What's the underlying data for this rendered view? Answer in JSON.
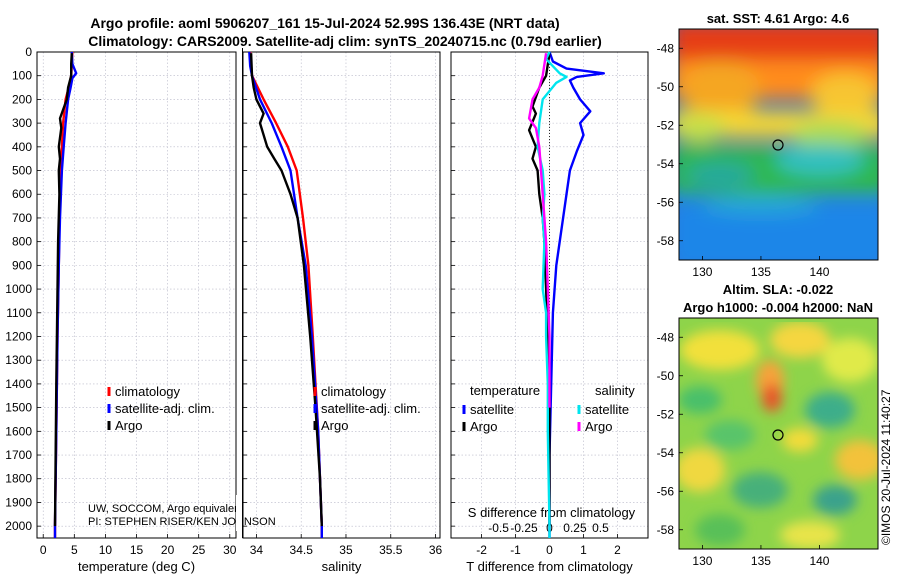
{
  "header": {
    "title_line1": "Argo profile: aoml 5906207_161 15-Jul-2024 52.99S 136.43E (NRT data)",
    "title_line2": "Climatology: CARS2009. Satellite-adj clim: synTS_20240715.nc (0.79d earlier)"
  },
  "credits": {
    "line1": "UW, SOCCOM, Argo equivalent",
    "line2": "PI: STEPHEN RISER/KEN JOHNSON",
    "watermark": "©IMOS 20-Jul-2024 11:40:27"
  },
  "colors": {
    "climatology": "#ff0000",
    "satellite": "#0000ff",
    "argo": "#000000",
    "sal_satellite": "#00e5ee",
    "sal_argo": "#ff00ff"
  },
  "chart_data": [
    {
      "id": "temperature",
      "type": "line",
      "xlabel": "temperature (deg C)",
      "ylabel": "depth",
      "xlim": [
        -1,
        31
      ],
      "ylim": [
        0,
        2050
      ],
      "y_reversed": true,
      "grid": true,
      "xticks": [
        0,
        5,
        10,
        15,
        20,
        25,
        30
      ],
      "yticks": [
        0,
        100,
        200,
        300,
        400,
        500,
        600,
        700,
        800,
        900,
        1000,
        1100,
        1200,
        1300,
        1400,
        1500,
        1600,
        1700,
        1800,
        1900,
        2000
      ],
      "legend": [
        "climatology",
        "satellite-adj. clim.",
        "Argo"
      ],
      "legend_position": "bottom-right",
      "series": [
        {
          "name": "climatology",
          "color": "red",
          "points": [
            [
              4.7,
              0
            ],
            [
              4.6,
              50
            ],
            [
              4.5,
              100
            ],
            [
              4.1,
              150
            ],
            [
              3.6,
              200
            ],
            [
              3.2,
              300
            ],
            [
              3.0,
              400
            ],
            [
              2.8,
              500
            ],
            [
              2.6,
              700
            ],
            [
              2.5,
              900
            ],
            [
              2.3,
              1200
            ],
            [
              2.1,
              1600
            ],
            [
              1.9,
              2000
            ],
            [
              1.9,
              2050
            ]
          ]
        },
        {
          "name": "satellite-adj. clim.",
          "color": "blue",
          "points": [
            [
              4.6,
              0
            ],
            [
              4.7,
              50
            ],
            [
              5.3,
              90
            ],
            [
              4.7,
              110
            ],
            [
              4.4,
              150
            ],
            [
              4.0,
              200
            ],
            [
              3.6,
              300
            ],
            [
              3.3,
              400
            ],
            [
              3.0,
              500
            ],
            [
              2.7,
              700
            ],
            [
              2.5,
              900
            ],
            [
              2.3,
              1200
            ],
            [
              2.1,
              1600
            ],
            [
              1.9,
              2000
            ],
            [
              1.9,
              2050
            ]
          ]
        },
        {
          "name": "Argo",
          "color": "black",
          "points": [
            [
              4.6,
              5
            ],
            [
              4.5,
              50
            ],
            [
              4.5,
              100
            ],
            [
              4.0,
              150
            ],
            [
              3.8,
              200
            ],
            [
              2.7,
              280
            ],
            [
              2.9,
              320
            ],
            [
              2.5,
              400
            ],
            [
              2.7,
              450
            ],
            [
              2.5,
              500
            ],
            [
              2.6,
              600
            ],
            [
              2.4,
              800
            ],
            [
              2.3,
              1000
            ],
            [
              2.1,
              1400
            ],
            [
              1.9,
              2000
            ]
          ]
        }
      ]
    },
    {
      "id": "salinity",
      "type": "line",
      "xlabel": "salinity",
      "ylabel": "",
      "xlim": [
        33.85,
        36.05
      ],
      "ylim": [
        0,
        2050
      ],
      "y_reversed": true,
      "grid": true,
      "xticks": [
        34,
        34.5,
        35,
        35.5,
        36
      ],
      "legend": [
        "climatology",
        "satellite-adj. clim.",
        "Argo"
      ],
      "legend_position": "bottom-right",
      "series": [
        {
          "name": "climatology",
          "color": "red",
          "points": [
            [
              33.93,
              0
            ],
            [
              33.95,
              100
            ],
            [
              34.08,
              200
            ],
            [
              34.22,
              300
            ],
            [
              34.35,
              400
            ],
            [
              34.45,
              500
            ],
            [
              34.52,
              700
            ],
            [
              34.58,
              900
            ],
            [
              34.63,
              1200
            ],
            [
              34.69,
              1600
            ],
            [
              34.73,
              2000
            ],
            [
              34.73,
              2050
            ]
          ]
        },
        {
          "name": "satellite-adj. clim.",
          "color": "blue",
          "points": [
            [
              33.92,
              0
            ],
            [
              33.93,
              60
            ],
            [
              33.95,
              100
            ],
            [
              34.04,
              200
            ],
            [
              34.17,
              300
            ],
            [
              34.28,
              400
            ],
            [
              34.38,
              500
            ],
            [
              34.46,
              700
            ],
            [
              34.55,
              900
            ],
            [
              34.62,
              1200
            ],
            [
              34.69,
              1600
            ],
            [
              34.73,
              2000
            ],
            [
              34.73,
              2050
            ]
          ]
        },
        {
          "name": "Argo",
          "color": "black",
          "points": [
            [
              33.94,
              5
            ],
            [
              33.95,
              100
            ],
            [
              33.97,
              150
            ],
            [
              34.0,
              200
            ],
            [
              34.08,
              260
            ],
            [
              34.04,
              300
            ],
            [
              34.12,
              400
            ],
            [
              34.2,
              450
            ],
            [
              34.28,
              500
            ],
            [
              34.38,
              600
            ],
            [
              34.46,
              700
            ],
            [
              34.53,
              900
            ],
            [
              34.6,
              1200
            ],
            [
              34.66,
              1500
            ],
            [
              34.71,
              1800
            ],
            [
              34.73,
              2000
            ]
          ]
        }
      ]
    },
    {
      "id": "difference",
      "type": "line",
      "xlabel": "T difference from climatology",
      "xlabel_top": "S difference from climatology",
      "xlim": [
        -2.9,
        2.9
      ],
      "ylim": [
        0,
        2050
      ],
      "y_reversed": true,
      "grid": true,
      "xticks": [
        -2,
        -1,
        0,
        1,
        2
      ],
      "xtick_labels": [
        "-2",
        "-1",
        "0",
        "1",
        "2"
      ],
      "sxticks": [
        -1.5,
        -0.75,
        0,
        0.75,
        1.5
      ],
      "sxtick_labels": [
        "-0.5",
        "-0.25",
        "0",
        "0.25",
        "0.5"
      ],
      "legend_groups": [
        {
          "title": "temperature",
          "items": [
            "satellite",
            "Argo"
          ]
        },
        {
          "title": "salinity",
          "items": [
            "satellite",
            "Argo"
          ]
        }
      ],
      "series": [
        {
          "name": "T satellite",
          "color": "blue",
          "points": [
            [
              0,
              0
            ],
            [
              0.1,
              40
            ],
            [
              0.5,
              70
            ],
            [
              1.6,
              90
            ],
            [
              0.8,
              105
            ],
            [
              0.6,
              120
            ],
            [
              0.7,
              150
            ],
            [
              0.9,
              200
            ],
            [
              1.2,
              250
            ],
            [
              0.9,
              300
            ],
            [
              1.0,
              350
            ],
            [
              0.8,
              420
            ],
            [
              0.6,
              500
            ],
            [
              0.5,
              600
            ],
            [
              0.4,
              700
            ],
            [
              0.3,
              800
            ],
            [
              0.2,
              900
            ],
            [
              0.1,
              1100
            ],
            [
              0.05,
              1400
            ],
            [
              0,
              1700
            ],
            [
              0,
              2000
            ],
            [
              0,
              2050
            ]
          ]
        },
        {
          "name": "T Argo",
          "color": "black",
          "points": [
            [
              0,
              5
            ],
            [
              -0.1,
              100
            ],
            [
              -0.3,
              150
            ],
            [
              -0.5,
              230
            ],
            [
              -0.4,
              260
            ],
            [
              -0.6,
              330
            ],
            [
              -0.4,
              400
            ],
            [
              -0.5,
              450
            ],
            [
              -0.35,
              500
            ],
            [
              -0.3,
              600
            ],
            [
              -0.2,
              700
            ],
            [
              -0.15,
              800
            ],
            [
              -0.1,
              1000
            ],
            [
              -0.05,
              1200
            ],
            [
              0,
              1400
            ],
            [
              0,
              1800
            ],
            [
              0,
              2000
            ]
          ]
        },
        {
          "name": "S satellite",
          "color": "cyan",
          "points": [
            [
              0,
              0
            ],
            [
              -0.1,
              30
            ],
            [
              0.3,
              90
            ],
            [
              0.5,
              105
            ],
            [
              0.2,
              130
            ],
            [
              -0.2,
              200
            ],
            [
              -0.3,
              300
            ],
            [
              -0.35,
              400
            ],
            [
              -0.2,
              500
            ],
            [
              -0.15,
              600
            ],
            [
              -0.2,
              700
            ],
            [
              -0.15,
              800
            ],
            [
              -0.2,
              1000
            ],
            [
              -0.1,
              1100
            ],
            [
              -0.1,
              1200
            ],
            [
              -0.05,
              1400
            ],
            [
              -0.05,
              1600
            ],
            [
              0,
              2000
            ],
            [
              0,
              2050
            ]
          ]
        },
        {
          "name": "S Argo",
          "color": "magenta",
          "points": [
            [
              -0.1,
              5
            ],
            [
              -0.2,
              100
            ],
            [
              -0.3,
              150
            ],
            [
              -0.5,
              200
            ],
            [
              -0.6,
              280
            ],
            [
              -0.4,
              320
            ],
            [
              -0.3,
              400
            ],
            [
              -0.25,
              500
            ],
            [
              -0.2,
              600
            ],
            [
              -0.15,
              700
            ],
            [
              -0.1,
              800
            ],
            [
              -0.05,
              1000
            ],
            [
              0,
              1200
            ],
            [
              0,
              1500
            ]
          ]
        }
      ]
    },
    {
      "id": "sst_map",
      "type": "heatmap",
      "title": "sat. SST: 4.61 Argo: 4.6",
      "xlim": [
        128,
        145
      ],
      "ylim": [
        -59,
        -47
      ],
      "xticks": [
        130,
        135,
        140
      ],
      "yticks": [
        -48,
        -50,
        -52,
        -54,
        -56,
        -58
      ],
      "marker": {
        "lon": 136.43,
        "lat": -52.99
      }
    },
    {
      "id": "sla_map",
      "type": "heatmap",
      "title_line1": "Altim. SLA: -0.022",
      "title_line2": "Argo h1000: -0.004 h2000: NaN",
      "xlim": [
        128,
        145
      ],
      "ylim": [
        -59,
        -47
      ],
      "xticks": [
        130,
        135,
        140
      ],
      "yticks": [
        -48,
        -50,
        -52,
        -54,
        -56,
        -58
      ],
      "marker": {
        "lon": 136.43,
        "lat": -52.99
      }
    }
  ]
}
